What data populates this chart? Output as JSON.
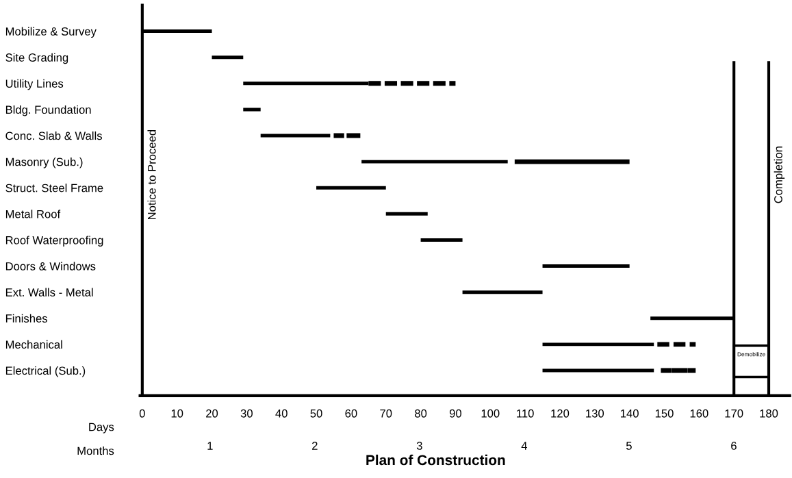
{
  "chart_data": {
    "type": "bar",
    "orientation": "horizontal",
    "title": "Plan of Construction",
    "xlabel": "Days",
    "x2label": "Months",
    "categories": [
      "Mobilize & Survey",
      "Site Grading",
      "Utility Lines",
      "Bldg. Foundation",
      "Conc. Slab & Walls",
      "Masonry (Sub.)",
      "Struct. Steel Frame",
      "Metal Roof",
      "Roof Waterproofing",
      "Doors & Windows",
      "Ext. Walls - Metal",
      "Finishes",
      "Mechanical",
      "Electrical (Sub.)"
    ],
    "series": [
      {
        "color": "#000000",
        "line_style": "solid",
        "base": [
          0,
          20,
          29,
          29,
          34,
          63,
          50,
          70,
          80,
          115,
          92,
          146,
          115,
          115
        ],
        "values": [
          20,
          9,
          36,
          5,
          20,
          42,
          20,
          12,
          12,
          25,
          23,
          24,
          32,
          32
        ]
      },
      {
        "color": "#000000",
        "line_style": "dashed",
        "base": [
          null,
          null,
          65,
          null,
          55,
          107,
          null,
          null,
          null,
          null,
          null,
          null,
          148,
          149
        ],
        "values": [
          null,
          null,
          25,
          null,
          8,
          33,
          null,
          null,
          null,
          null,
          null,
          null,
          11,
          10
        ]
      },
      {
        "name": "Demobilize",
        "color": "#ffffff",
        "base": [
          null,
          null,
          null,
          null,
          null,
          null,
          null,
          null,
          null,
          null,
          null,
          null,
          null,
          170
        ],
        "values": [
          null,
          null,
          null,
          null,
          null,
          null,
          null,
          null,
          null,
          null,
          null,
          null,
          null,
          10
        ]
      }
    ],
    "xlim": [
      -0.6,
      186
    ],
    "xticks": [
      0,
      10,
      20,
      30,
      40,
      50,
      60,
      70,
      80,
      90,
      100,
      110,
      120,
      130,
      140,
      150,
      160,
      170,
      180
    ],
    "x2lim": [
      0.3333,
      6.5333
    ],
    "x2ticks": [
      1,
      2,
      3,
      4,
      5,
      6
    ],
    "ref_lines": [
      {
        "axis": "x",
        "value": 0,
        "label": "Notice to Proceed",
        "color": "#000000"
      },
      {
        "axis": "x",
        "value": 170,
        "label": null,
        "color": "#000000"
      },
      {
        "axis": "x",
        "value": 180,
        "label": "Completion",
        "color": "#000000"
      }
    ],
    "grid": false,
    "legend": false
  }
}
